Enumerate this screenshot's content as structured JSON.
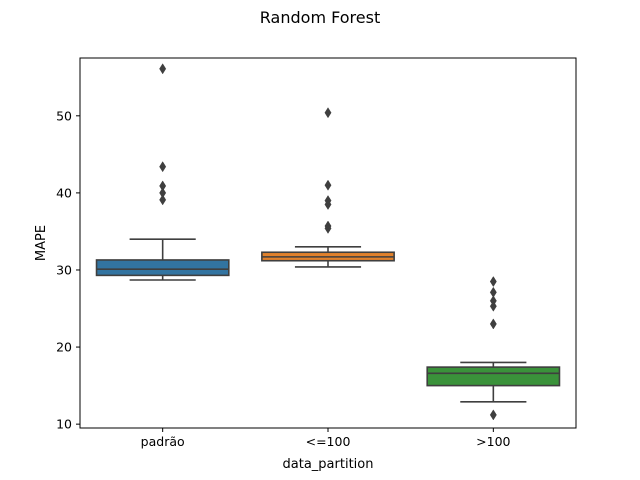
{
  "chart_data": {
    "type": "box",
    "title": "Random Forest",
    "xlabel": "data_partition",
    "ylabel": "MAPE",
    "ylim": [
      9.5,
      57.5
    ],
    "yticks": [
      10,
      20,
      30,
      40,
      50
    ],
    "grid": false,
    "categories": [
      "padrão",
      "<=100",
      ">100"
    ],
    "colors": [
      "#3274a1",
      "#e1812c",
      "#3a923a"
    ],
    "boxes": [
      {
        "category": "padrão",
        "whisker_low": 28.7,
        "q1": 29.3,
        "median": 30.1,
        "q3": 31.3,
        "whisker_high": 34.0,
        "outliers": [
          56.1,
          43.4,
          40.9,
          40.0,
          39.1
        ]
      },
      {
        "category": "<=100",
        "whisker_low": 30.4,
        "q1": 31.2,
        "median": 31.7,
        "q3": 32.3,
        "whisker_high": 33.0,
        "outliers": [
          50.4,
          41.0,
          39.0,
          38.5,
          35.7,
          35.4
        ]
      },
      {
        "category": ">100",
        "whisker_low": 12.9,
        "q1": 15.0,
        "median": 16.6,
        "q3": 17.4,
        "whisker_high": 18.0,
        "outliers": [
          28.5,
          27.1,
          26.0,
          25.3,
          23.0,
          11.2
        ]
      }
    ]
  }
}
